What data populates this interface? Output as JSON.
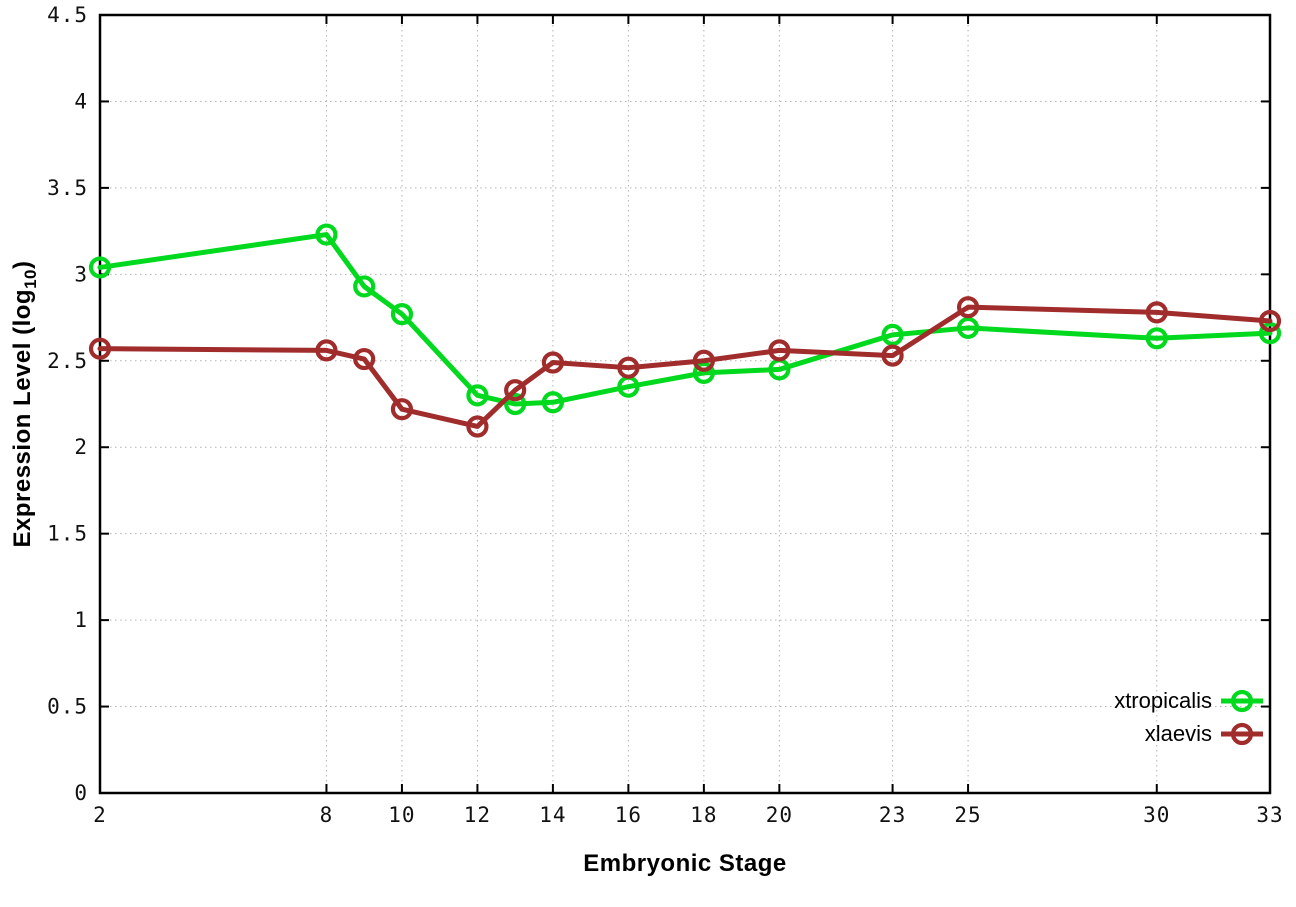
{
  "chart_data": {
    "type": "line",
    "title": "",
    "xlabel": "Embryonic Stage",
    "ylabel": "Expression Level (log10)",
    "ylabel_parts": {
      "main": "Expression Level (log",
      "sub": "10",
      "close": ")"
    },
    "xlim": [
      2,
      33
    ],
    "ylim": [
      0,
      4.5
    ],
    "xticks": [
      2,
      8,
      10,
      12,
      14,
      16,
      18,
      20,
      23,
      25,
      30,
      33
    ],
    "yticks": [
      0,
      0.5,
      1,
      1.5,
      2,
      2.5,
      3,
      3.5,
      4,
      4.5
    ],
    "grid": true,
    "legend_position": "inside-bottom-right",
    "x": [
      2,
      8,
      9,
      10,
      12,
      13,
      14,
      16,
      18,
      20,
      23,
      25,
      30,
      33
    ],
    "series": [
      {
        "name": "xtropicalis",
        "color": "#00d91e",
        "values": [
          3.04,
          3.23,
          2.93,
          2.77,
          2.3,
          2.25,
          2.26,
          2.35,
          2.43,
          2.45,
          2.65,
          2.69,
          2.63,
          2.66
        ]
      },
      {
        "name": "xlaevis",
        "color": "#a02c2c",
        "values": [
          2.57,
          2.56,
          2.51,
          2.22,
          2.12,
          2.33,
          2.49,
          2.46,
          2.5,
          2.56,
          2.53,
          2.81,
          2.78,
          2.73
        ]
      }
    ],
    "style": {
      "grid_color": "#b4b4b4",
      "border_color": "#000000",
      "tick_label_color": "#111111",
      "line_width": 5,
      "marker_radius": 9,
      "marker_stroke": 4.2
    }
  }
}
